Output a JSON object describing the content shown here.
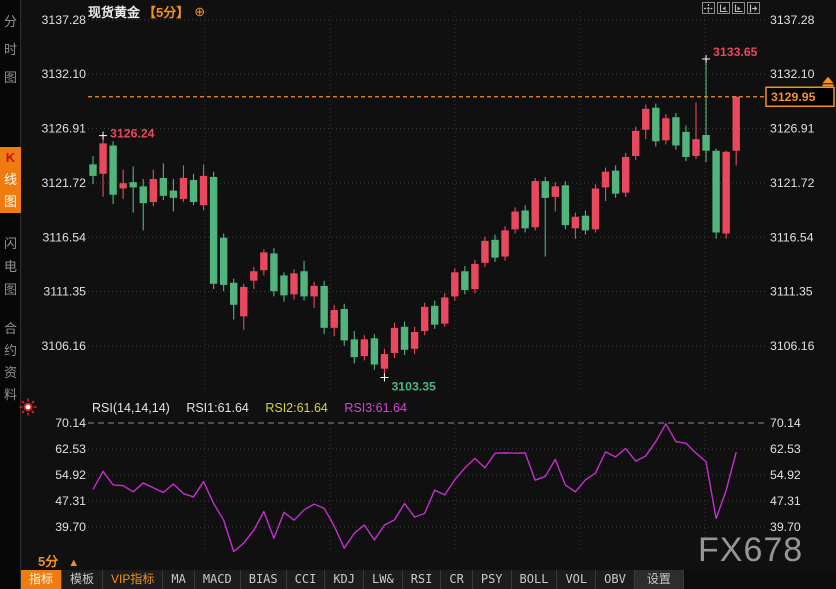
{
  "header": {
    "symbol": "现货黄金",
    "period_badge": "【5分】",
    "add_icon": "⊕"
  },
  "window_buttons": [
    {
      "id": "crosshair",
      "name": "crosshair-tool"
    },
    {
      "id": "scale-left",
      "name": "time-axis-left"
    },
    {
      "id": "scale-right",
      "name": "time-axis-right"
    },
    {
      "id": "exit",
      "name": "collapse-panel"
    }
  ],
  "sidebar": {
    "items": [
      {
        "id": "time-chart",
        "label": "分时图",
        "active": false
      },
      {
        "id": "kline-chart",
        "label": "K线图",
        "active": true
      },
      {
        "id": "lightning-chart",
        "label": "闪电图",
        "active": false
      },
      {
        "id": "contract-info",
        "label": "合约资料",
        "active": false
      }
    ]
  },
  "timeframe": {
    "label": "5分",
    "arrow": "▲"
  },
  "watermark": {
    "text": "FX678"
  },
  "toolbar": {
    "tabs": [
      {
        "label": "指标",
        "active": true
      },
      {
        "label": "模板"
      },
      {
        "label": "VIP指标",
        "vip": true
      },
      {
        "label": "MA"
      },
      {
        "label": "MACD"
      },
      {
        "label": "BIAS"
      },
      {
        "label": "CCI"
      },
      {
        "label": "KDJ"
      },
      {
        "label": "LW&"
      },
      {
        "label": "RSI"
      },
      {
        "label": "CR"
      },
      {
        "label": "PSY"
      },
      {
        "label": "BOLL"
      },
      {
        "label": "VOL"
      },
      {
        "label": "OBV"
      },
      {
        "label": "设置",
        "settings": true
      }
    ]
  },
  "colors": {
    "accent_orange": "#f5921f",
    "up_red": "#e8495f",
    "down_green": "#50b47c",
    "rsi_line": "#c72ed0",
    "rsi2_yellow": "#d6d63a",
    "rsi3_magenta": "#d245d8",
    "grid": "#414141",
    "overbought_line": "#8d8d8d",
    "axis_text": "#e0e0e0",
    "watermark_gray": "#969696"
  },
  "chart_data": {
    "type": "candlestick",
    "title": "现货黄金 5分钟K线 与 RSI 指标",
    "time_gridlines_x": [
      205,
      330,
      455,
      580,
      705
    ],
    "main_pane": {
      "y_ticks": [
        3137.28,
        3132.1,
        3126.91,
        3121.72,
        3116.54,
        3111.35,
        3106.16
      ],
      "current_price": "3129.95",
      "early_high_marker": {
        "index": 1,
        "value": 3126.24,
        "label": "3126.24"
      },
      "low_marker": {
        "index": 29,
        "value": 3103.35,
        "label": "3103.35"
      },
      "high_marker": {
        "index": 61,
        "value": 3133.65,
        "label": "3133.65"
      },
      "candles": [
        [
          3123.5,
          3124.3,
          3121.6,
          3122.4
        ],
        [
          3122.6,
          3126.24,
          3120.4,
          3125.5
        ],
        [
          3125.3,
          3125.7,
          3119.7,
          3120.6
        ],
        [
          3121.2,
          3123.0,
          3120.2,
          3121.7
        ],
        [
          3121.8,
          3123.3,
          3118.9,
          3121.3
        ],
        [
          3121.4,
          3122.1,
          3117.2,
          3119.8
        ],
        [
          3119.9,
          3123.0,
          3119.5,
          3122.1
        ],
        [
          3122.2,
          3123.6,
          3120.1,
          3120.5
        ],
        [
          3121.0,
          3122.1,
          3119.0,
          3120.3
        ],
        [
          3120.2,
          3123.4,
          3119.9,
          3122.2
        ],
        [
          3122.0,
          3122.6,
          3119.6,
          3119.9
        ],
        [
          3119.6,
          3123.5,
          3119.1,
          3122.4
        ],
        [
          3122.3,
          3122.8,
          3111.6,
          3112.1
        ],
        [
          3116.5,
          3116.9,
          3111.4,
          3112.0
        ],
        [
          3112.2,
          3112.6,
          3108.7,
          3110.1
        ],
        [
          3109.0,
          3112.1,
          3107.7,
          3111.8
        ],
        [
          3112.4,
          3113.7,
          3111.6,
          3113.3
        ],
        [
          3113.4,
          3115.4,
          3112.9,
          3115.1
        ],
        [
          3115.0,
          3115.5,
          3110.9,
          3111.4
        ],
        [
          3112.9,
          3113.2,
          3110.4,
          3111.0
        ],
        [
          3111.1,
          3113.5,
          3110.6,
          3113.1
        ],
        [
          3113.3,
          3114.3,
          3110.5,
          3110.9
        ],
        [
          3110.9,
          3112.3,
          3109.8,
          3111.9
        ],
        [
          3111.9,
          3112.4,
          3107.3,
          3107.9
        ],
        [
          3107.9,
          3110.1,
          3107.1,
          3109.6
        ],
        [
          3109.7,
          3110.2,
          3106.2,
          3106.7
        ],
        [
          3106.8,
          3107.6,
          3104.5,
          3105.1
        ],
        [
          3105.2,
          3107.2,
          3104.8,
          3106.8
        ],
        [
          3106.9,
          3107.3,
          3103.9,
          3104.4
        ],
        [
          3104.0,
          3105.9,
          3103.35,
          3105.4
        ],
        [
          3105.5,
          3108.4,
          3105.0,
          3107.9
        ],
        [
          3108.0,
          3108.5,
          3105.3,
          3105.8
        ],
        [
          3105.9,
          3108.0,
          3105.4,
          3107.5
        ],
        [
          3107.6,
          3110.3,
          3107.2,
          3109.9
        ],
        [
          3110.0,
          3110.5,
          3107.8,
          3108.2
        ],
        [
          3108.3,
          3111.2,
          3108.0,
          3110.8
        ],
        [
          3110.9,
          3113.6,
          3110.5,
          3113.2
        ],
        [
          3113.3,
          3113.8,
          3111.1,
          3111.5
        ],
        [
          3111.6,
          3114.4,
          3111.2,
          3114.0
        ],
        [
          3114.1,
          3116.6,
          3113.7,
          3116.2
        ],
        [
          3116.3,
          3116.8,
          3114.2,
          3114.6
        ],
        [
          3114.7,
          3117.6,
          3114.3,
          3117.2
        ],
        [
          3117.3,
          3119.4,
          3116.9,
          3119.0
        ],
        [
          3119.1,
          3119.6,
          3117.0,
          3117.4
        ],
        [
          3117.5,
          3122.2,
          3117.2,
          3121.9
        ],
        [
          3121.9,
          3122.3,
          3114.7,
          3120.3
        ],
        [
          3120.4,
          3121.8,
          3119.0,
          3121.4
        ],
        [
          3121.5,
          3121.9,
          3117.3,
          3117.7
        ],
        [
          3117.4,
          3118.9,
          3116.4,
          3118.5
        ],
        [
          3118.6,
          3119.1,
          3116.8,
          3117.2
        ],
        [
          3117.3,
          3121.6,
          3117.0,
          3121.2
        ],
        [
          3121.3,
          3123.2,
          3120.0,
          3122.8
        ],
        [
          3122.9,
          3123.4,
          3120.3,
          3120.7
        ],
        [
          3120.8,
          3124.6,
          3120.4,
          3124.2
        ],
        [
          3124.3,
          3127.1,
          3123.9,
          3126.7
        ],
        [
          3126.8,
          3129.2,
          3125.9,
          3128.8
        ],
        [
          3128.9,
          3129.3,
          3125.2,
          3125.7
        ],
        [
          3125.8,
          3128.3,
          3125.4,
          3127.9
        ],
        [
          3128.0,
          3128.4,
          3124.9,
          3125.3
        ],
        [
          3126.6,
          3127.2,
          3123.8,
          3124.2
        ],
        [
          3124.3,
          3129.4,
          3124.0,
          3125.9
        ],
        [
          3126.3,
          3133.65,
          3123.7,
          3124.8
        ],
        [
          3124.8,
          3125.0,
          3116.4,
          3117.0
        ],
        [
          3116.9,
          3124.8,
          3116.4,
          3124.7
        ],
        [
          3124.8,
          3130.0,
          3123.4,
          3129.95
        ]
      ]
    },
    "rsi_pane": {
      "params_label": "RSI(14,14,14)",
      "rsi1_label": "RSI1:61.64",
      "rsi2_label": "RSI2:61.64",
      "rsi3_label": "RSI3:61.64",
      "y_ticks": [
        70.14,
        62.53,
        54.92,
        47.31,
        39.7
      ],
      "overbought_level": 70.14,
      "values": [
        50.7,
        56.0,
        52.0,
        51.8,
        50.0,
        52.6,
        51.2,
        49.8,
        52.3,
        49.5,
        48.5,
        53.0,
        46.6,
        41.7,
        32.5,
        35.0,
        38.8,
        44.2,
        36.4,
        44.0,
        41.7,
        44.7,
        46.4,
        45.2,
        40.0,
        33.5,
        37.9,
        40.3,
        35.9,
        40.3,
        41.8,
        46.6,
        42.6,
        43.7,
        50.5,
        49.1,
        53.5,
        57.0,
        59.8,
        57.0,
        61.3,
        61.4,
        61.3,
        61.4,
        53.4,
        54.5,
        59.5,
        52.0,
        50.0,
        53.5,
        55.5,
        61.7,
        60.2,
        62.7,
        59.0,
        60.5,
        64.7,
        69.9,
        64.7,
        64.2,
        61.3,
        58.8,
        42.2,
        50.4,
        61.64
      ]
    }
  }
}
